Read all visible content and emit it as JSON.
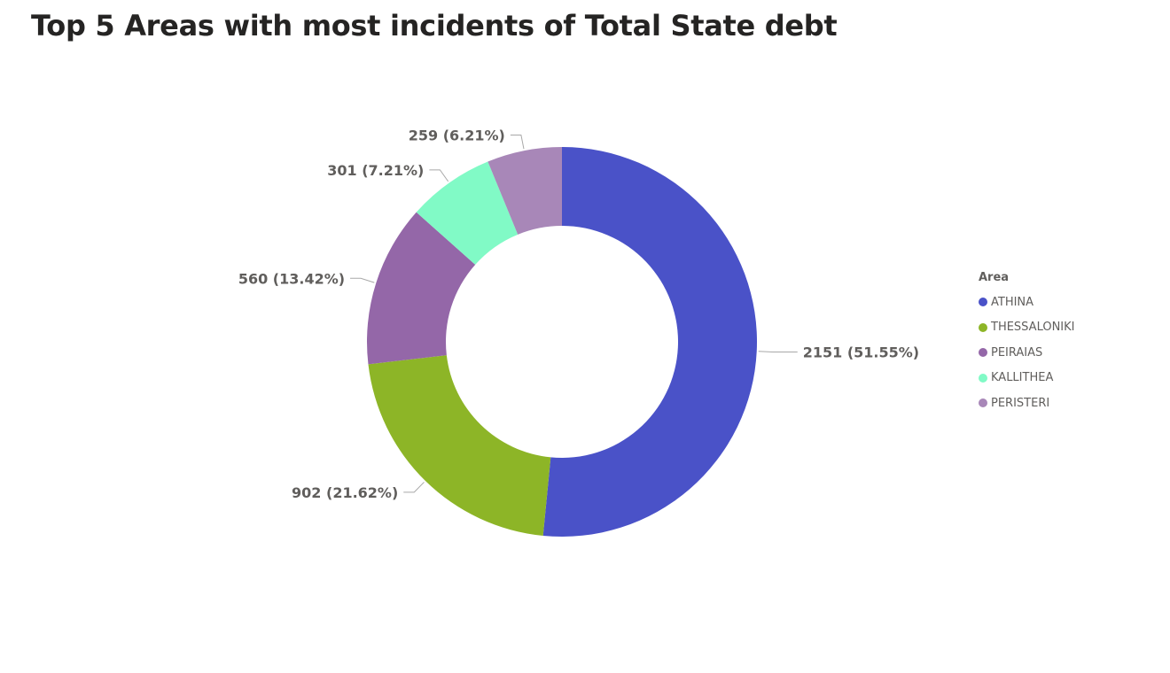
{
  "chart_data": {
    "type": "pie",
    "variant": "donut",
    "title": "Top 5 Areas with most incidents of Total State debt",
    "legend_title": "Area",
    "legend_position": "right",
    "categories": [
      "ATHINA",
      "THESSALONIKI",
      "PEIRAIAS",
      "KALLITHEA",
      "PERISTERI"
    ],
    "values": [
      2151,
      902,
      560,
      301,
      259
    ],
    "percents": [
      51.55,
      21.62,
      13.42,
      7.21,
      6.21
    ],
    "labels": [
      "2151 (51.55%)",
      "902 (21.62%)",
      "560 (13.42%)",
      "301 (7.21%)",
      "259 (6.21%)"
    ],
    "colors": [
      "#4a52c8",
      "#8db527",
      "#9467a8",
      "#81fac6",
      "#a887b8"
    ]
  }
}
